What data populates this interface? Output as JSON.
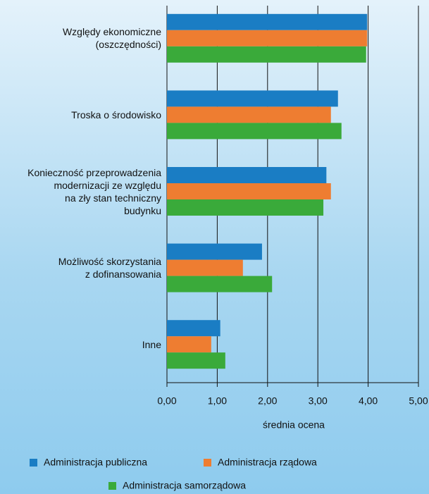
{
  "chart_data": {
    "type": "bar",
    "orientation": "horizontal",
    "x_label": "średnia ocena",
    "categories": [
      "Względy ekonomiczne\n(oszczędności)",
      "Troska o środowisko",
      "Konieczność przeprowadzenia\nmodernizacji ze względu\nna zły stan techniczny\nbudynku",
      "Możliwość skorzystania\nz dofinansowania",
      "Inne"
    ],
    "series": [
      {
        "name": "Administracja publiczna",
        "color": "#1a7dc4",
        "values": [
          3.98,
          3.4,
          3.17,
          1.89,
          1.06
        ]
      },
      {
        "name": "Administracja rządowa",
        "color": "#ee7d31",
        "values": [
          3.98,
          3.26,
          3.26,
          1.51,
          0.88
        ]
      },
      {
        "name": "Administracja samorządowa",
        "color": "#3aaa3a",
        "values": [
          3.96,
          3.47,
          3.11,
          2.09,
          1.16
        ]
      }
    ],
    "xlim": [
      0,
      5
    ],
    "xticks": [
      {
        "value": 0,
        "label": "0,00"
      },
      {
        "value": 1,
        "label": "1,00"
      },
      {
        "value": 2,
        "label": "2,00"
      },
      {
        "value": 3,
        "label": "3,00"
      },
      {
        "value": 4,
        "label": "4,00"
      },
      {
        "value": 5,
        "label": "5,00"
      }
    ],
    "grid": true
  }
}
